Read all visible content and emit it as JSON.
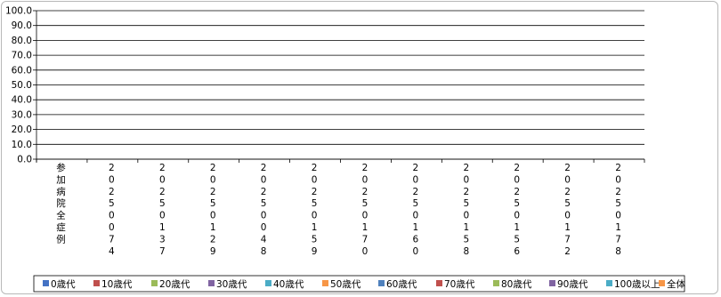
{
  "chart_data": {
    "type": "bar",
    "title": "",
    "xlabel": "",
    "ylabel": "",
    "ylim": [
      0,
      100
    ],
    "yticks": [
      "0.0",
      "10.0",
      "20.0",
      "30.0",
      "40.0",
      "50.0",
      "60.0",
      "70.0",
      "80.0",
      "90.0",
      "100.0"
    ],
    "grid": true,
    "legend_position": "bottom",
    "categories": [
      "参加病院全症例",
      "20250074",
      "20250137",
      "20250129",
      "20250048",
      "20250159",
      "20250170",
      "20250160",
      "20250158",
      "20250156",
      "20250172",
      "20250178"
    ],
    "series": [
      {
        "name": "0歳代",
        "color": "#4472C4",
        "values": [
          0,
          0,
          0,
          0,
          0,
          0,
          0,
          0,
          0,
          0,
          0,
          0
        ]
      },
      {
        "name": "10歳代",
        "color": "#C0504D",
        "values": [
          0,
          0,
          0,
          0,
          0,
          0,
          0,
          0,
          0,
          0,
          0,
          0
        ]
      },
      {
        "name": "20歳代",
        "color": "#9BBB59",
        "values": [
          0,
          0,
          0,
          0,
          0,
          0,
          0,
          0,
          0,
          0,
          0,
          0
        ]
      },
      {
        "name": "30歳代",
        "color": "#8064A2",
        "values": [
          0,
          0,
          0,
          0,
          0,
          0,
          0,
          0,
          0,
          0,
          0,
          0
        ]
      },
      {
        "name": "40歳代",
        "color": "#4BACC6",
        "values": [
          0,
          0,
          0,
          0,
          0,
          0,
          0,
          0,
          0,
          0,
          0,
          0
        ]
      },
      {
        "name": "50歳代",
        "color": "#F79646",
        "values": [
          0,
          0,
          0,
          0,
          0,
          0,
          0,
          0,
          0,
          0,
          0,
          0
        ]
      },
      {
        "name": "60歳代",
        "color": "#4F81BD",
        "values": [
          0,
          0,
          0,
          0,
          0,
          0,
          0,
          0,
          0,
          0,
          0,
          0
        ]
      },
      {
        "name": "70歳代",
        "color": "#C0504D",
        "values": [
          0,
          0,
          0,
          0,
          0,
          0,
          0,
          0,
          0,
          0,
          0,
          0
        ]
      },
      {
        "name": "80歳代",
        "color": "#9BBB59",
        "values": [
          0,
          0,
          0,
          0,
          0,
          0,
          0,
          0,
          0,
          0,
          0,
          0
        ]
      },
      {
        "name": "90歳代",
        "color": "#8064A2",
        "values": [
          0,
          0,
          0,
          0,
          0,
          0,
          0,
          0,
          0,
          0,
          0,
          0
        ]
      },
      {
        "name": "100歳以上",
        "color": "#4BACC6",
        "values": [
          0,
          0,
          0,
          0,
          0,
          0,
          0,
          0,
          0,
          0,
          0,
          0
        ]
      },
      {
        "name": "全体",
        "color": "#F79646",
        "values": [
          0,
          0,
          0,
          0,
          0,
          0,
          0,
          0,
          0,
          0,
          0,
          0
        ]
      }
    ]
  }
}
